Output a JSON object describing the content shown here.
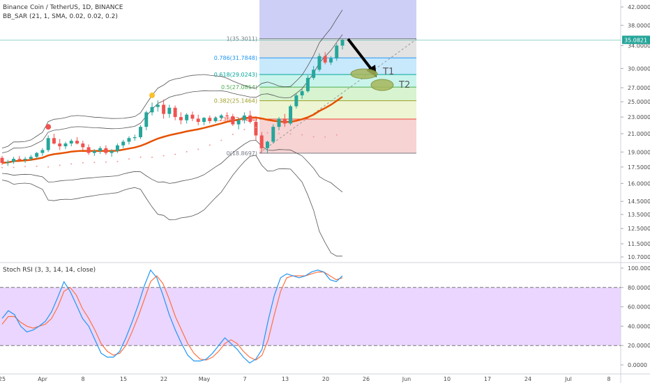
{
  "header": {
    "title": "Binance Coin / TetherUS, 1D, BINANCE",
    "indicator": "BB_SAR (21, 1, SMA, 0.02, 0.02, 0.2)"
  },
  "stoch_header": "Stoch RSI (3, 3, 14, 14, close)",
  "price_axis": {
    "ticks": [
      "42.0000",
      "38.0000",
      "34.0000",
      "30.0000",
      "27.0000",
      "25.0000",
      "23.0000",
      "21.0000",
      "19.0000",
      "17.5000",
      "16.0000",
      "14.5000",
      "13.5000",
      "12.5000",
      "11.5000",
      "10.7000"
    ],
    "last_price": "35.0821"
  },
  "stoch_axis": {
    "ticks": [
      "100.0000",
      "80.0000",
      "60.0000",
      "40.0000",
      "20.0000",
      "0.0000"
    ]
  },
  "time_axis": {
    "ticks": [
      "25",
      "Apr",
      "8",
      "15",
      "22",
      "May",
      "7",
      "13",
      "20",
      "26",
      "Jun",
      "10",
      "17",
      "24",
      "Jul",
      "8"
    ]
  },
  "fib_levels": [
    {
      "label": "1(35.3011)",
      "color": "#787b86"
    },
    {
      "label": "0.786(31.7848)",
      "color": "#2196f3"
    },
    {
      "label": "0.618(29.0243)",
      "color": "#00a69c"
    },
    {
      "label": "0.5(27.0854)",
      "color": "#4caf50"
    },
    {
      "label": "0.382(25.1464)",
      "color": "#9e9d24"
    },
    {
      "label": "0.236(22.7474)",
      "color": "#f44336"
    },
    {
      "label": "0(18.8697)",
      "color": "#787b86"
    }
  ],
  "targets": {
    "t1": "T1",
    "t2": "T2"
  },
  "colors": {
    "up": "#26a69a",
    "down": "#ef5350",
    "ma": "#e65100",
    "band": "#555555",
    "stoch_k": "#2196f3",
    "stoch_d": "#ff7043",
    "stoch_band": "#e1c4ff"
  },
  "chart_data": {
    "type": "candlestick",
    "series_ohlc": [
      [
        18.4,
        18.6,
        17.7,
        17.9
      ],
      [
        17.9,
        18.2,
        17.6,
        18.0
      ],
      [
        18.0,
        18.5,
        17.8,
        18.3
      ],
      [
        18.3,
        18.6,
        18.0,
        18.2
      ],
      [
        18.2,
        18.5,
        17.9,
        18.3
      ],
      [
        18.3,
        18.7,
        18.1,
        18.5
      ],
      [
        18.5,
        19.0,
        18.3,
        18.9
      ],
      [
        18.9,
        19.4,
        18.6,
        19.2
      ],
      [
        19.2,
        20.8,
        19.0,
        20.5
      ],
      [
        20.5,
        21.0,
        19.8,
        19.9
      ],
      [
        19.9,
        20.4,
        19.2,
        19.6
      ],
      [
        19.6,
        20.1,
        19.3,
        19.9
      ],
      [
        19.9,
        20.4,
        19.6,
        20.2
      ],
      [
        20.2,
        20.6,
        19.8,
        19.9
      ],
      [
        19.9,
        20.2,
        19.2,
        19.5
      ],
      [
        19.5,
        19.8,
        18.7,
        18.9
      ],
      [
        18.9,
        19.3,
        18.6,
        19.1
      ],
      [
        19.1,
        19.6,
        18.8,
        19.4
      ],
      [
        19.4,
        19.7,
        18.7,
        18.9
      ],
      [
        18.9,
        19.3,
        18.5,
        19.1
      ],
      [
        19.1,
        19.9,
        18.9,
        19.7
      ],
      [
        19.7,
        20.3,
        19.4,
        20.1
      ],
      [
        20.1,
        20.7,
        19.8,
        20.5
      ],
      [
        20.5,
        20.9,
        20.2,
        20.6
      ],
      [
        20.6,
        22.0,
        20.4,
        21.8
      ],
      [
        21.8,
        23.8,
        21.4,
        23.6
      ],
      [
        23.6,
        24.9,
        23.2,
        24.3
      ],
      [
        24.3,
        25.2,
        23.7,
        24.6
      ],
      [
        24.6,
        25.3,
        22.8,
        23.4
      ],
      [
        23.4,
        24.6,
        22.9,
        24.2
      ],
      [
        24.2,
        24.5,
        22.6,
        23.0
      ],
      [
        23.0,
        23.6,
        22.1,
        22.6
      ],
      [
        22.6,
        23.5,
        22.2,
        23.3
      ],
      [
        23.3,
        23.7,
        22.5,
        22.8
      ],
      [
        22.8,
        23.3,
        22.0,
        22.4
      ],
      [
        22.4,
        23.0,
        22.0,
        22.9
      ],
      [
        22.9,
        23.2,
        22.2,
        22.5
      ],
      [
        22.5,
        23.1,
        22.3,
        22.9
      ],
      [
        22.9,
        23.4,
        22.7,
        23.2
      ],
      [
        23.2,
        23.6,
        22.8,
        23.1
      ],
      [
        23.1,
        23.4,
        21.9,
        22.1
      ],
      [
        22.1,
        22.9,
        21.5,
        22.6
      ],
      [
        22.6,
        23.6,
        22.2,
        23.2
      ],
      [
        23.2,
        23.8,
        22.2,
        22.4
      ],
      [
        22.4,
        23.1,
        20.3,
        20.8
      ],
      [
        20.8,
        21.2,
        18.9,
        19.4
      ],
      [
        19.4,
        20.2,
        18.9,
        20.1
      ],
      [
        20.1,
        22.1,
        19.9,
        21.8
      ],
      [
        21.8,
        23.0,
        21.4,
        22.8
      ],
      [
        22.8,
        23.4,
        21.8,
        22.2
      ],
      [
        22.2,
        24.6,
        22.0,
        24.4
      ],
      [
        24.4,
        26.2,
        24.1,
        25.9
      ],
      [
        25.9,
        26.8,
        25.4,
        26.5
      ],
      [
        26.5,
        28.9,
        26.3,
        28.5
      ],
      [
        28.5,
        30.4,
        28.2,
        29.8
      ],
      [
        29.8,
        32.6,
        29.5,
        32.1
      ],
      [
        32.1,
        32.8,
        30.7,
        31.0
      ],
      [
        31.0,
        32.1,
        30.6,
        31.7
      ],
      [
        31.7,
        34.4,
        31.3,
        34.0
      ],
      [
        34.0,
        35.3,
        33.3,
        35.1
      ]
    ],
    "sar_markers": [
      {
        "index": 8,
        "value": 21.8
      },
      {
        "index": 26,
        "value": 25.9
      }
    ],
    "fib_values": [
      35.3011,
      31.7848,
      29.0243,
      27.0854,
      25.1464,
      22.7474,
      18.8697
    ],
    "stoch_rsi": {
      "k": [
        48,
        56,
        52,
        40,
        34,
        36,
        40,
        45,
        55,
        70,
        86,
        76,
        62,
        48,
        40,
        26,
        12,
        8,
        8,
        14,
        28,
        44,
        62,
        82,
        98,
        90,
        72,
        52,
        36,
        22,
        10,
        4,
        4,
        6,
        12,
        20,
        28,
        22,
        16,
        8,
        2,
        6,
        16,
        46,
        72,
        90,
        94,
        92,
        90,
        92,
        96,
        98,
        96,
        88,
        86,
        92
      ],
      "d": [
        42,
        50,
        50,
        44,
        40,
        38,
        40,
        42,
        48,
        60,
        76,
        80,
        72,
        58,
        48,
        36,
        22,
        14,
        10,
        12,
        20,
        34,
        50,
        68,
        86,
        92,
        84,
        68,
        50,
        36,
        22,
        12,
        6,
        5,
        8,
        14,
        22,
        26,
        22,
        14,
        8,
        5,
        10,
        26,
        52,
        76,
        90,
        92,
        92,
        92,
        94,
        96,
        96,
        92,
        88,
        90
      ],
      "upper": 80,
      "lower": 20,
      "ylim": [
        0,
        100
      ]
    },
    "ylim": [
      10.7,
      42
    ]
  }
}
